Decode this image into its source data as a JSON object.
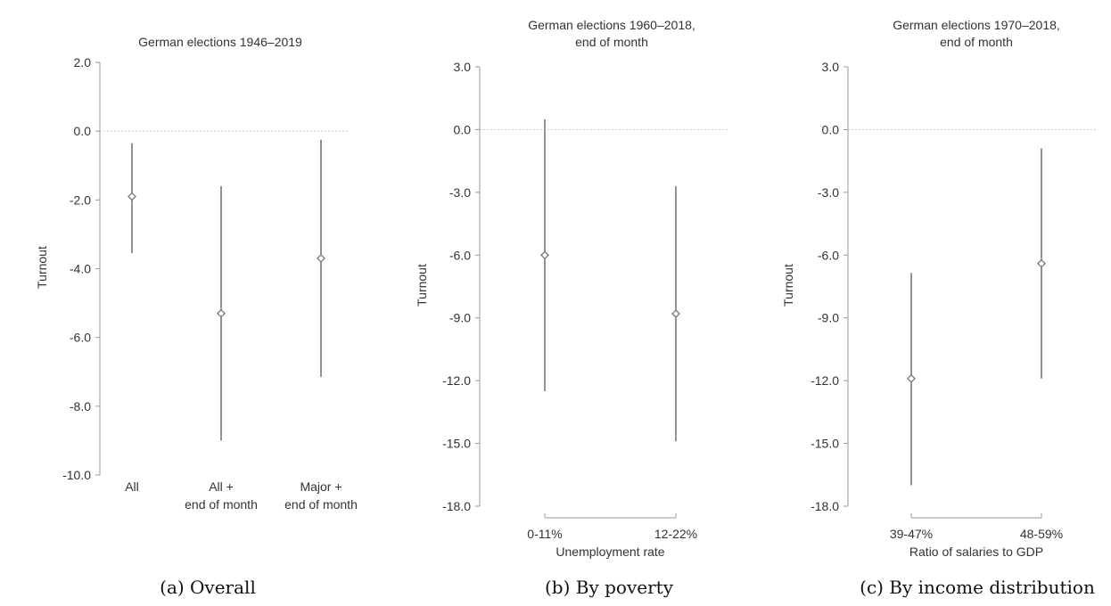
{
  "chart_data": [
    {
      "type": "scatter",
      "style": "point-estimate-with-confidence-interval",
      "title_lines": [
        "German elections 1946–2019"
      ],
      "caption": "(a) Overall",
      "ylabel": "Turnout",
      "xlabel": "",
      "ylim": [
        -10.0,
        2.0
      ],
      "yticks": [
        2.0,
        0.0,
        -2.0,
        -4.0,
        -6.0,
        -8.0,
        -10.0
      ],
      "ytick_labels": [
        "2.0",
        "0.0",
        "-2.0",
        "-4.0",
        "-6.0",
        "-8.0",
        "-10.0"
      ],
      "reference_line": 0.0,
      "x_axis_line": false,
      "categories": [
        {
          "label_lines": [
            "All"
          ],
          "estimate": -1.9,
          "ci": [
            -3.55,
            -0.35
          ]
        },
        {
          "label_lines": [
            "All +",
            "end of month"
          ],
          "estimate": -5.3,
          "ci": [
            -9.0,
            -1.6
          ]
        },
        {
          "label_lines": [
            "Major +",
            "end of month"
          ],
          "estimate": -3.7,
          "ci": [
            -7.15,
            -0.25
          ]
        }
      ]
    },
    {
      "type": "scatter",
      "style": "point-estimate-with-confidence-interval",
      "title_lines": [
        "German elections 1960–2018,",
        "end of month"
      ],
      "caption": "(b) By poverty",
      "ylabel": "Turnout",
      "xlabel": "Unemployment rate",
      "ylim": [
        -18.0,
        3.0
      ],
      "yticks": [
        3.0,
        0.0,
        -3.0,
        -6.0,
        -9.0,
        -12.0,
        -15.0,
        -18.0
      ],
      "ytick_labels": [
        "3.0",
        "0.0",
        "-3.0",
        "-6.0",
        "-9.0",
        "-12.0",
        "-15.0",
        "-18.0"
      ],
      "reference_line": 0.0,
      "x_axis_line": true,
      "categories": [
        {
          "label_lines": [
            "0-11%"
          ],
          "estimate": -6.0,
          "ci": [
            -12.5,
            0.5
          ]
        },
        {
          "label_lines": [
            "12-22%"
          ],
          "estimate": -8.8,
          "ci": [
            -14.9,
            -2.7
          ]
        }
      ]
    },
    {
      "type": "scatter",
      "style": "point-estimate-with-confidence-interval",
      "title_lines": [
        "German elections 1970–2018,",
        "end of month"
      ],
      "caption": "(c) By income distribution",
      "ylabel": "Turnout",
      "xlabel": "Ratio of salaries to GDP",
      "ylim": [
        -18.0,
        3.0
      ],
      "yticks": [
        3.0,
        0.0,
        -3.0,
        -6.0,
        -9.0,
        -12.0,
        -15.0,
        -18.0
      ],
      "ytick_labels": [
        "3.0",
        "0.0",
        "-3.0",
        "-6.0",
        "-9.0",
        "-12.0",
        "-15.0",
        "-18.0"
      ],
      "reference_line": 0.0,
      "x_axis_line": true,
      "categories": [
        {
          "label_lines": [
            "39-47%"
          ],
          "estimate": -11.9,
          "ci": [
            -17.0,
            -6.85
          ]
        },
        {
          "label_lines": [
            "48-59%"
          ],
          "estimate": -6.4,
          "ci": [
            -11.9,
            -0.9
          ]
        }
      ]
    }
  ],
  "colors": {
    "interval": "#777777",
    "marker_fill": "#ffffff",
    "axis": "#999999",
    "reference_line": "#bbbbbb",
    "text": "#333333"
  }
}
